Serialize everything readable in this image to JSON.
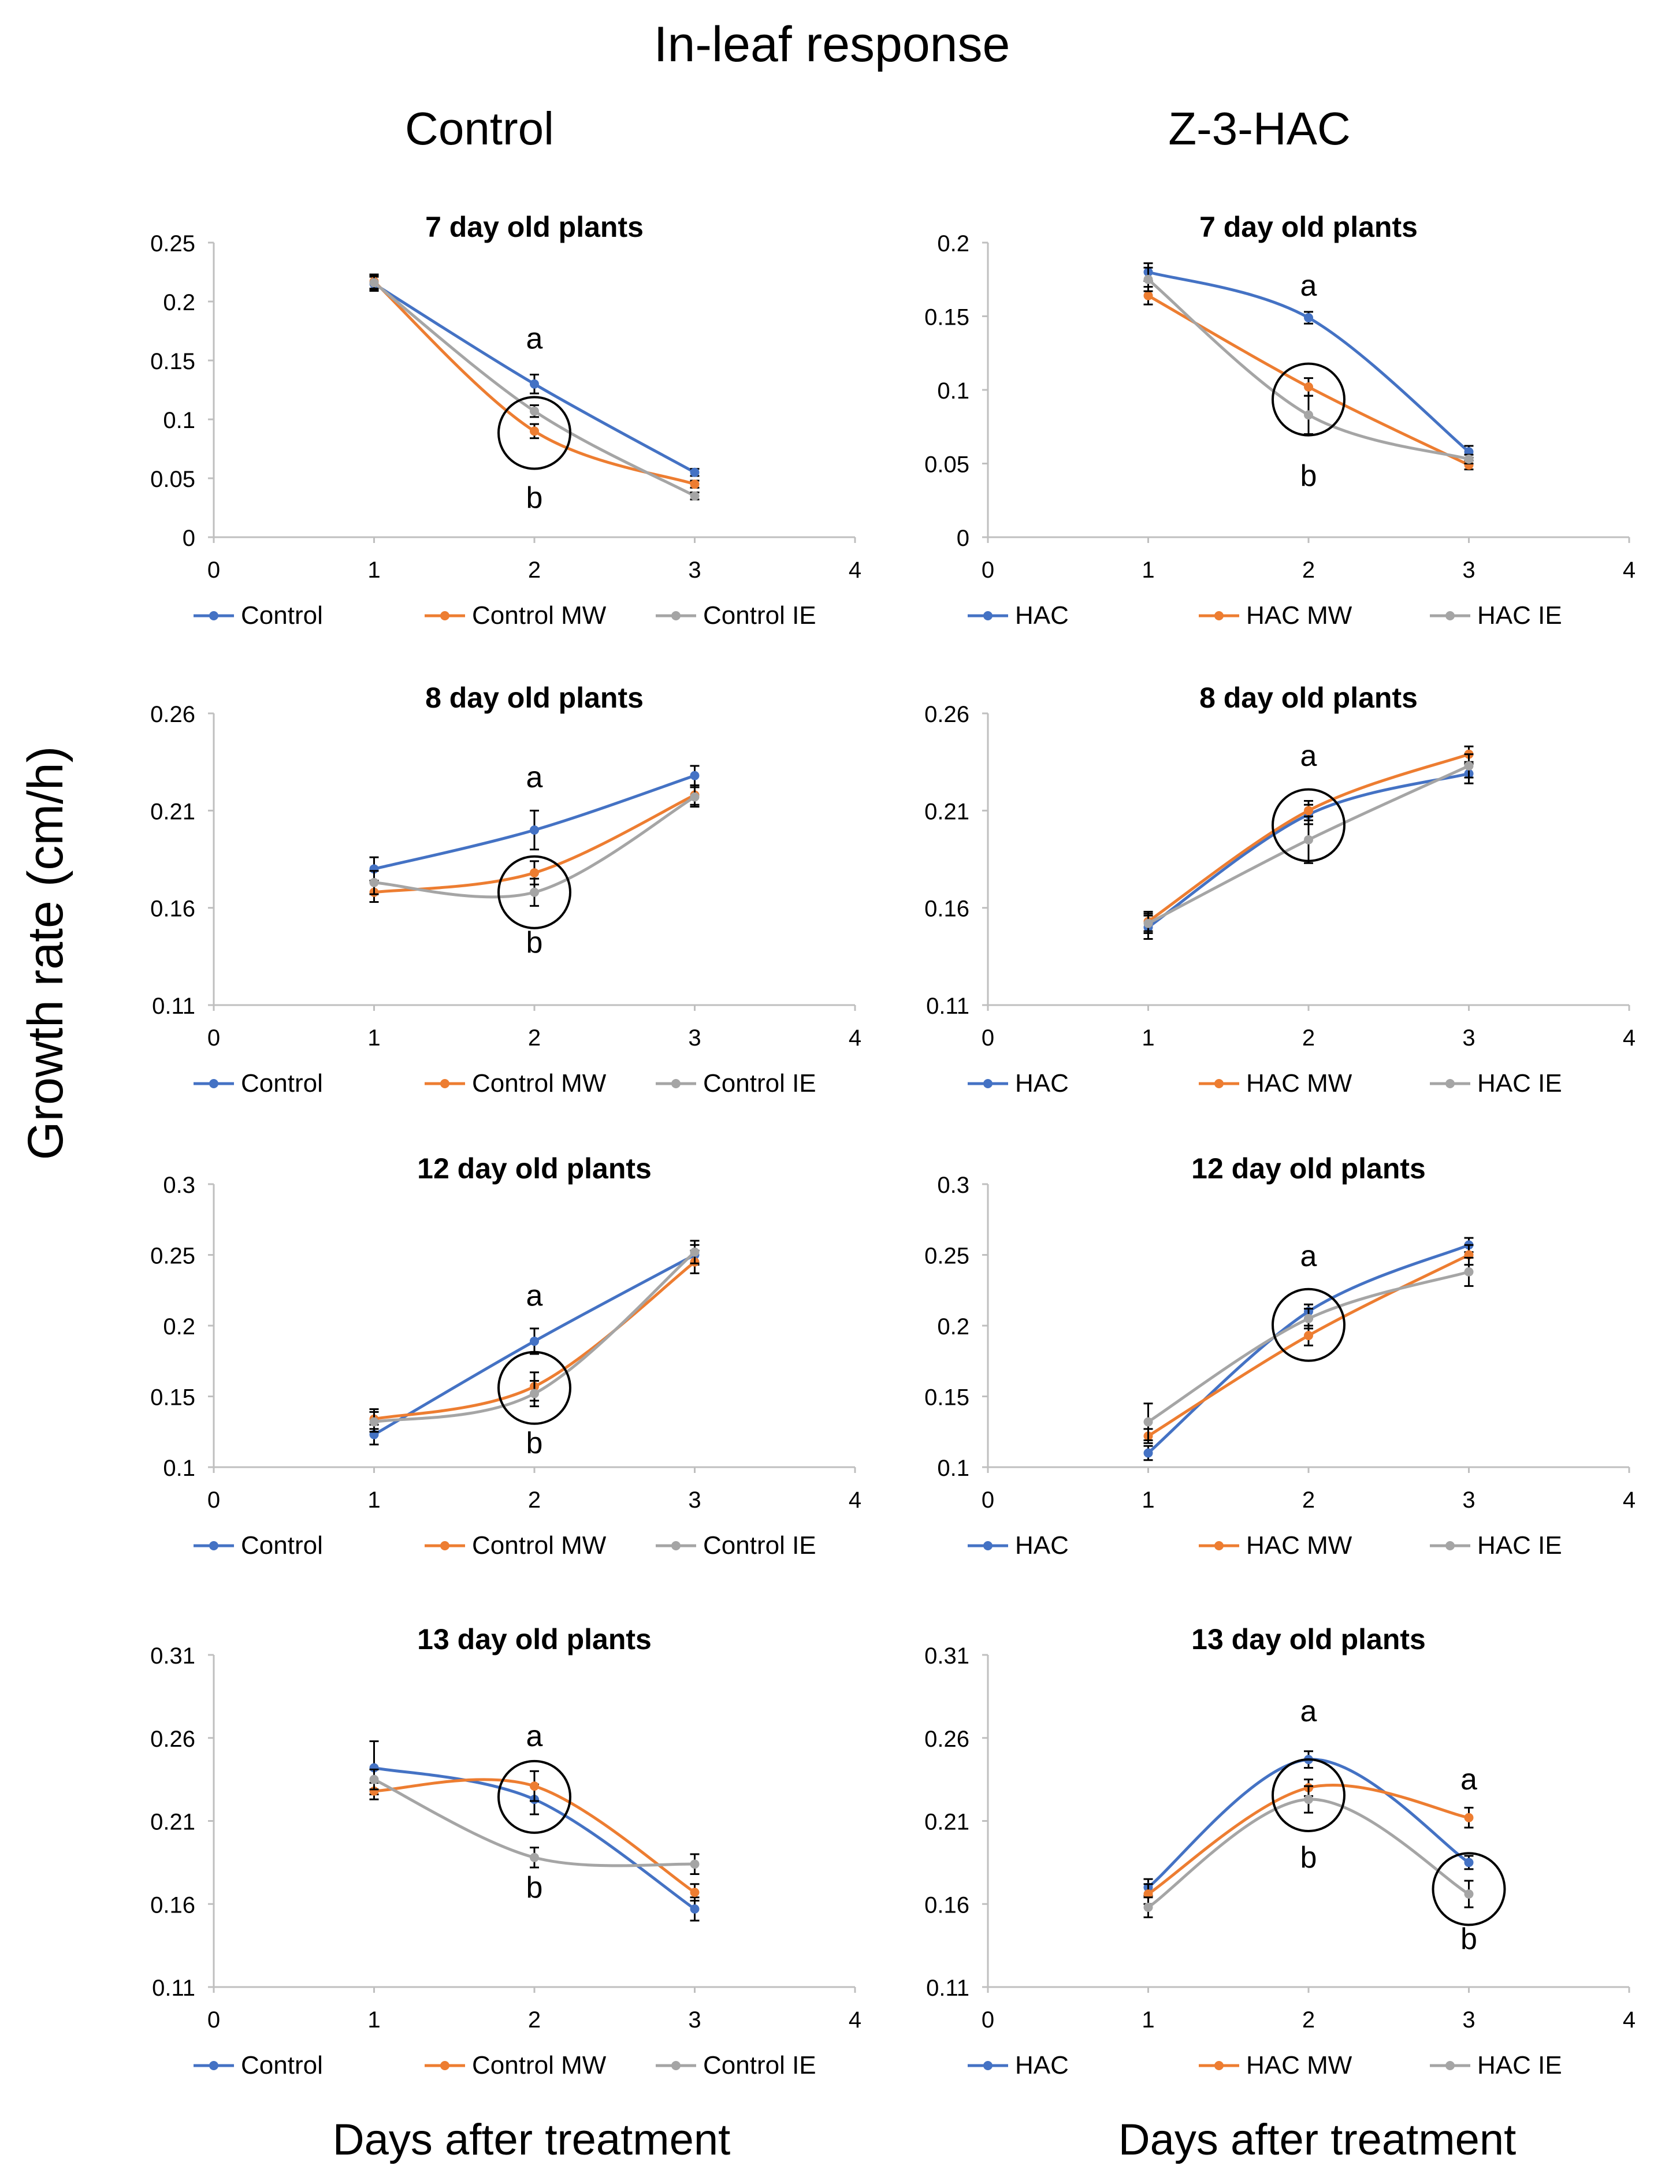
{
  "figure": {
    "title": "In-leaf response",
    "column_titles": [
      "Control",
      "Z-3-HAC"
    ],
    "ylabel": "Growth rate (cm/h)",
    "xlabel": "Days after treatment"
  },
  "colors": {
    "series": [
      "#4472C4",
      "#ED7D31",
      "#A5A5A5"
    ],
    "axis": "#d9d9d9",
    "text": "#000000"
  },
  "chart_data": [
    {
      "type": "line",
      "title": "7 day old plants",
      "xlim": [
        0,
        4
      ],
      "ylim": [
        0,
        0.25
      ],
      "yticks": [
        "0",
        "0.05",
        "0.1",
        "0.15",
        "0.2",
        "0.25"
      ],
      "xticks": [
        "0",
        "1",
        "2",
        "3",
        "4"
      ],
      "x": [
        1,
        2,
        3
      ],
      "series": [
        {
          "name": "Control",
          "values": [
            0.215,
            0.13,
            0.055
          ],
          "err": [
            0.006,
            0.008,
            0.003
          ]
        },
        {
          "name": "Control MW",
          "values": [
            0.217,
            0.09,
            0.045
          ],
          "err": [
            0.006,
            0.006,
            0.003
          ]
        },
        {
          "name": "Control IE",
          "values": [
            0.216,
            0.107,
            0.035
          ],
          "err": [
            0.006,
            0.005,
            0.003
          ]
        }
      ],
      "annotations": [
        {
          "text": "a",
          "x": 2,
          "y": 0.16
        },
        {
          "text": "b",
          "x": 2,
          "y": 0.025
        }
      ],
      "circles": [
        {
          "x": 2,
          "y": 0.0885
        }
      ]
    },
    {
      "type": "line",
      "title": "7 day old plants",
      "xlim": [
        0,
        4
      ],
      "ylim": [
        0,
        0.2
      ],
      "yticks": [
        "0",
        "0.05",
        "0.1",
        "0.15",
        "0.2"
      ],
      "xticks": [
        "0",
        "1",
        "2",
        "3",
        "4"
      ],
      "x": [
        1,
        2,
        3
      ],
      "series": [
        {
          "name": "HAC",
          "values": [
            0.18,
            0.149,
            0.058
          ],
          "err": [
            0.006,
            0.004,
            0.004
          ]
        },
        {
          "name": "HAC MW",
          "values": [
            0.164,
            0.102,
            0.049
          ],
          "err": [
            0.006,
            0.006,
            0.003
          ]
        },
        {
          "name": "HAC IE",
          "values": [
            0.175,
            0.083,
            0.053
          ],
          "err": [
            0.008,
            0.013,
            0.003
          ]
        }
      ],
      "annotations": [
        {
          "text": "a",
          "x": 2,
          "y": 0.164
        },
        {
          "text": "b",
          "x": 2,
          "y": 0.035
        }
      ],
      "circles": [
        {
          "x": 2,
          "y": 0.0935
        }
      ]
    },
    {
      "type": "line",
      "title": "8 day old plants",
      "xlim": [
        0,
        4
      ],
      "ylim": [
        0.11,
        0.26
      ],
      "yticks": [
        "0.11",
        "0.16",
        "0.21",
        "0.26"
      ],
      "xticks": [
        "0",
        "1",
        "2",
        "3",
        "4"
      ],
      "x": [
        1,
        2,
        3
      ],
      "series": [
        {
          "name": "Control",
          "values": [
            0.18,
            0.2,
            0.228
          ],
          "err": [
            0.006,
            0.01,
            0.005
          ]
        },
        {
          "name": "Control MW",
          "values": [
            0.168,
            0.178,
            0.218
          ],
          "err": [
            0.005,
            0.006,
            0.005
          ]
        },
        {
          "name": "Control IE",
          "values": [
            0.173,
            0.168,
            0.217
          ],
          "err": [
            0.006,
            0.007,
            0.005
          ]
        }
      ],
      "annotations": [
        {
          "text": "a",
          "x": 2,
          "y": 0.222
        },
        {
          "text": "b",
          "x": 2,
          "y": 0.137
        }
      ],
      "circles": [
        {
          "x": 2,
          "y": 0.168
        }
      ]
    },
    {
      "type": "line",
      "title": "8 day old plants",
      "xlim": [
        0,
        4
      ],
      "ylim": [
        0.11,
        0.26
      ],
      "yticks": [
        "0.11",
        "0.16",
        "0.21",
        "0.26"
      ],
      "xticks": [
        "0",
        "1",
        "2",
        "3",
        "4"
      ],
      "x": [
        1,
        2,
        3
      ],
      "series": [
        {
          "name": "HAC",
          "values": [
            0.15,
            0.208,
            0.229
          ],
          "err": [
            0.006,
            0.005,
            0.005
          ]
        },
        {
          "name": "HAC MW",
          "values": [
            0.153,
            0.21,
            0.239
          ],
          "err": [
            0.005,
            0.005,
            0.004
          ]
        },
        {
          "name": "HAC IE",
          "values": [
            0.152,
            0.195,
            0.233
          ],
          "err": [
            0.005,
            0.012,
            0.006
          ]
        }
      ],
      "annotations": [
        {
          "text": "a",
          "x": 2,
          "y": 0.233
        }
      ],
      "circles": [
        {
          "x": 2,
          "y": 0.2025
        }
      ]
    },
    {
      "type": "line",
      "title": "12 day old plants",
      "xlim": [
        0,
        4
      ],
      "ylim": [
        0.1,
        0.3
      ],
      "yticks": [
        "0.1",
        "0.15",
        "0.2",
        "0.25",
        "0.3"
      ],
      "xticks": [
        "0",
        "1",
        "2",
        "3",
        "4"
      ],
      "x": [
        1,
        2,
        3
      ],
      "series": [
        {
          "name": "Control",
          "values": [
            0.123,
            0.189,
            0.25
          ],
          "err": [
            0.007,
            0.009,
            0.007
          ]
        },
        {
          "name": "Control MW",
          "values": [
            0.134,
            0.157,
            0.245
          ],
          "err": [
            0.007,
            0.01,
            0.008
          ]
        },
        {
          "name": "Control IE",
          "values": [
            0.132,
            0.152,
            0.252
          ],
          "err": [
            0.007,
            0.009,
            0.008
          ]
        }
      ],
      "annotations": [
        {
          "text": "a",
          "x": 2,
          "y": 0.214
        },
        {
          "text": "b",
          "x": 2,
          "y": 0.11
        }
      ],
      "circles": [
        {
          "x": 2,
          "y": 0.156
        }
      ]
    },
    {
      "type": "line",
      "title": "12 day old plants",
      "xlim": [
        0,
        4
      ],
      "ylim": [
        0.1,
        0.3
      ],
      "yticks": [
        "0.1",
        "0.15",
        "0.2",
        "0.25",
        "0.3"
      ],
      "xticks": [
        "0",
        "1",
        "2",
        "3",
        "4"
      ],
      "x": [
        1,
        2,
        3
      ],
      "series": [
        {
          "name": "HAC",
          "values": [
            0.11,
            0.21,
            0.257
          ],
          "err": [
            0.005,
            0.005,
            0.005
          ]
        },
        {
          "name": "HAC MW",
          "values": [
            0.122,
            0.193,
            0.25
          ],
          "err": [
            0.005,
            0.007,
            0.007
          ]
        },
        {
          "name": "HAC IE",
          "values": [
            0.132,
            0.205,
            0.238
          ],
          "err": [
            0.013,
            0.007,
            0.01
          ]
        }
      ],
      "annotations": [
        {
          "text": "a",
          "x": 2,
          "y": 0.242
        }
      ],
      "circles": [
        {
          "x": 2,
          "y": 0.2005
        }
      ]
    },
    {
      "type": "line",
      "title": "13 day old plants",
      "xlim": [
        0,
        4
      ],
      "ylim": [
        0.11,
        0.31
      ],
      "yticks": [
        "0.11",
        "0.16",
        "0.21",
        "0.26",
        "0.31"
      ],
      "xticks": [
        "0",
        "1",
        "2",
        "3",
        "4"
      ],
      "x": [
        1,
        2,
        3
      ],
      "series": [
        {
          "name": "Control",
          "values": [
            0.242,
            0.223,
            0.157
          ],
          "err": [
            0.016,
            0.009,
            0.007
          ]
        },
        {
          "name": "Control MW",
          "values": [
            0.228,
            0.231,
            0.167
          ],
          "err": [
            0.005,
            0.009,
            0.005
          ]
        },
        {
          "name": "Control IE",
          "values": [
            0.235,
            0.188,
            0.184
          ],
          "err": [
            0.006,
            0.006,
            0.006
          ]
        }
      ],
      "annotations": [
        {
          "text": "a",
          "x": 2,
          "y": 0.255
        },
        {
          "text": "b",
          "x": 2,
          "y": 0.164
        }
      ],
      "circles": [
        {
          "x": 2,
          "y": 0.2245
        }
      ]
    },
    {
      "type": "line",
      "title": "13 day old plants",
      "xlim": [
        0,
        4
      ],
      "ylim": [
        0.11,
        0.31
      ],
      "yticks": [
        "0.11",
        "0.16",
        "0.21",
        "0.26",
        "0.31"
      ],
      "xticks": [
        "0",
        "1",
        "2",
        "3",
        "4"
      ],
      "x": [
        1,
        2,
        3
      ],
      "series": [
        {
          "name": "HAC",
          "values": [
            0.17,
            0.247,
            0.185
          ],
          "err": [
            0.005,
            0.005,
            0.004
          ]
        },
        {
          "name": "HAC MW",
          "values": [
            0.166,
            0.23,
            0.212
          ],
          "err": [
            0.006,
            0.005,
            0.006
          ]
        },
        {
          "name": "HAC IE",
          "values": [
            0.158,
            0.223,
            0.166
          ],
          "err": [
            0.006,
            0.008,
            0.008
          ]
        }
      ],
      "annotations": [
        {
          "text": "a",
          "x": 2,
          "y": 0.27
        },
        {
          "text": "b",
          "x": 2,
          "y": 0.182
        },
        {
          "text": "a",
          "x": 3,
          "y": 0.229
        },
        {
          "text": "b",
          "x": 3,
          "y": 0.133
        }
      ],
      "circles": [
        {
          "x": 2,
          "y": 0.2255
        },
        {
          "x": 3,
          "y": 0.169
        }
      ]
    }
  ]
}
